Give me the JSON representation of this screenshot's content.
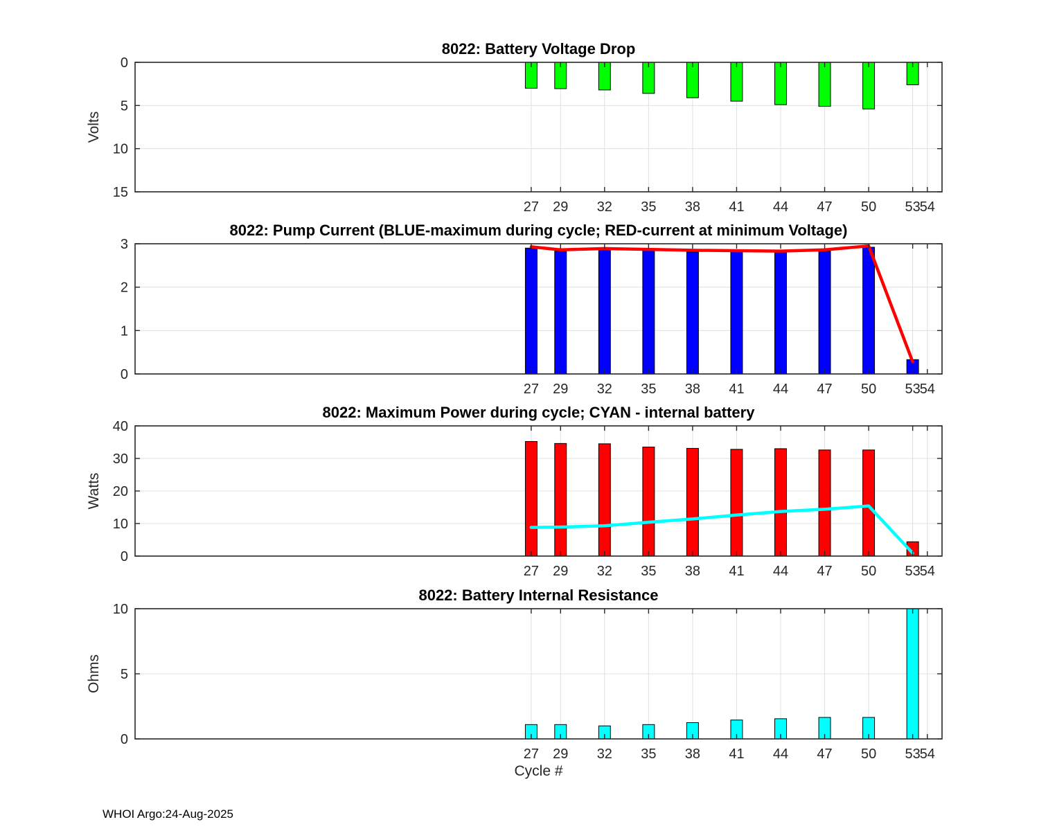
{
  "figure": {
    "footer_text": "WHOI Argo:24-Aug-2025",
    "xlabel": "Cycle #",
    "background_color": "#ffffff",
    "axis_color": "#262626",
    "grid_color": "#e0e0e0",
    "tick_label_color": "#262626",
    "title_color": "#000000"
  },
  "chart_data": [
    {
      "type": "bar",
      "title": "8022: Battery Voltage Drop",
      "ylabel": "Volts",
      "xlim": [
        0,
        55
      ],
      "ylim": [
        0,
        15
      ],
      "y_reversed": true,
      "yticks": [
        0,
        5,
        10,
        15
      ],
      "xticks": [
        27,
        29,
        32,
        35,
        38,
        41,
        44,
        47,
        50,
        53,
        54
      ],
      "categories": [
        27,
        29,
        32,
        35,
        38,
        41,
        44,
        47,
        50,
        53
      ],
      "grid": true,
      "legend_position": "none",
      "bars": {
        "name": "battery-voltage-drop-volts",
        "color": "#00ff00",
        "values": [
          3.0,
          3.05,
          3.2,
          3.6,
          4.1,
          4.5,
          4.9,
          5.1,
          5.4,
          2.6
        ]
      }
    },
    {
      "type": "bar+line",
      "title": "8022: Pump Current (BLUE-maximum during cycle; RED-current at minimum Voltage)",
      "ylabel": "",
      "xlim": [
        0,
        55
      ],
      "ylim": [
        0,
        3
      ],
      "y_reversed": false,
      "yticks": [
        0,
        1,
        2,
        3
      ],
      "xticks": [
        27,
        29,
        32,
        35,
        38,
        41,
        44,
        47,
        50,
        53,
        54
      ],
      "categories": [
        27,
        29,
        32,
        35,
        38,
        41,
        44,
        47,
        50,
        53
      ],
      "grid": true,
      "legend_position": "none",
      "bars": {
        "name": "max-pump-current-amps",
        "color": "#0000ff",
        "values": [
          2.9,
          2.83,
          2.87,
          2.85,
          2.81,
          2.82,
          2.82,
          2.83,
          2.92,
          0.33
        ]
      },
      "line": {
        "name": "current-at-minimum-voltage-amps",
        "color": "#ff0000",
        "values": [
          2.93,
          2.86,
          2.89,
          2.87,
          2.85,
          2.84,
          2.83,
          2.86,
          2.95,
          0.28
        ]
      }
    },
    {
      "type": "bar+line",
      "title": "8022: Maximum Power during cycle; CYAN - internal battery",
      "ylabel": "Watts",
      "xlim": [
        0,
        55
      ],
      "ylim": [
        0,
        40
      ],
      "y_reversed": false,
      "yticks": [
        0,
        10,
        20,
        30,
        40
      ],
      "xticks": [
        27,
        29,
        32,
        35,
        38,
        41,
        44,
        47,
        50,
        53,
        54
      ],
      "categories": [
        27,
        29,
        32,
        35,
        38,
        41,
        44,
        47,
        50,
        53
      ],
      "grid": true,
      "legend_position": "none",
      "bars": {
        "name": "maximum-power-watts",
        "color": "#ff0000",
        "values": [
          35.2,
          34.6,
          34.5,
          33.5,
          33.1,
          32.8,
          33.0,
          32.6,
          32.6,
          4.4
        ]
      },
      "line": {
        "name": "internal-battery-power-watts",
        "color": "#00ffff",
        "values": [
          8.8,
          8.9,
          9.3,
          10.4,
          11.4,
          12.6,
          13.7,
          14.4,
          15.4,
          0.9
        ]
      }
    },
    {
      "type": "bar",
      "title": "8022: Battery Internal Resistance",
      "ylabel": "Ohms",
      "xlim": [
        0,
        55
      ],
      "ylim": [
        0,
        10
      ],
      "y_reversed": false,
      "yticks": [
        0,
        5,
        10
      ],
      "xticks": [
        27,
        29,
        32,
        35,
        38,
        41,
        44,
        47,
        50,
        53,
        54
      ],
      "categories": [
        27,
        29,
        32,
        35,
        38,
        41,
        44,
        47,
        50,
        53
      ],
      "grid": true,
      "legend_position": "none",
      "bars": {
        "name": "battery-internal-resistance-ohms",
        "color": "#00ffff",
        "values": [
          1.1,
          1.1,
          1.0,
          1.1,
          1.25,
          1.45,
          1.55,
          1.65,
          1.65,
          10
        ]
      }
    }
  ]
}
